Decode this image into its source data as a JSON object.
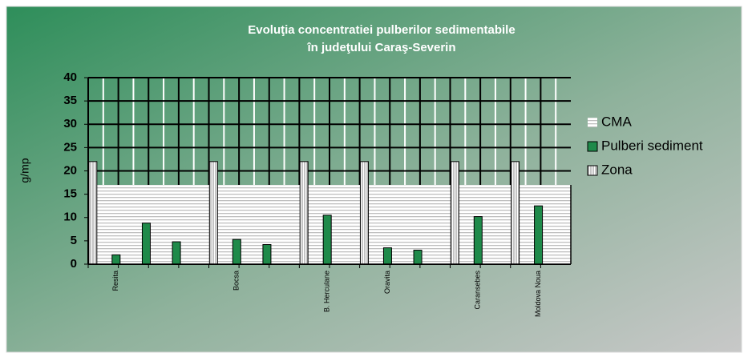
{
  "chart_data": {
    "type": "bar",
    "title": [
      "Evoluţia concentratiei  pulberilor sedimentabile",
      "în judeţului Caraş-Severin"
    ],
    "y_label": "g/mp",
    "categories": [
      "Resita",
      null,
      null,
      null,
      "Bocsa",
      null,
      null,
      "B. Herculane",
      null,
      "Oravita",
      null,
      null,
      "Caransebes",
      null,
      "Moldova Noua",
      null
    ],
    "series": [
      {
        "name": "CMA",
        "type": "area",
        "color": "#ffffff",
        "values": [
          17,
          17,
          17,
          17,
          17,
          17,
          17,
          17,
          17,
          17,
          17,
          17,
          17,
          17,
          17,
          17
        ]
      },
      {
        "name": "Pulberi sediment",
        "type": "bar",
        "color": "#1f8a4a",
        "values": [
          2,
          8.8,
          4.8,
          null,
          5.3,
          4.2,
          null,
          10.5,
          null,
          3.5,
          3,
          null,
          10.2,
          null,
          12.5,
          null
        ]
      },
      {
        "name": "Zona",
        "type": "bar",
        "color": "#ffffff",
        "values": [
          22,
          null,
          null,
          null,
          22,
          null,
          null,
          22,
          null,
          22,
          null,
          null,
          22,
          null,
          22,
          null
        ]
      }
    ],
    "ylim": [
      0,
      40
    ],
    "yticks": [
      0,
      5,
      10,
      15,
      20,
      25,
      30,
      35,
      40
    ],
    "grid": true,
    "legend": "right"
  }
}
